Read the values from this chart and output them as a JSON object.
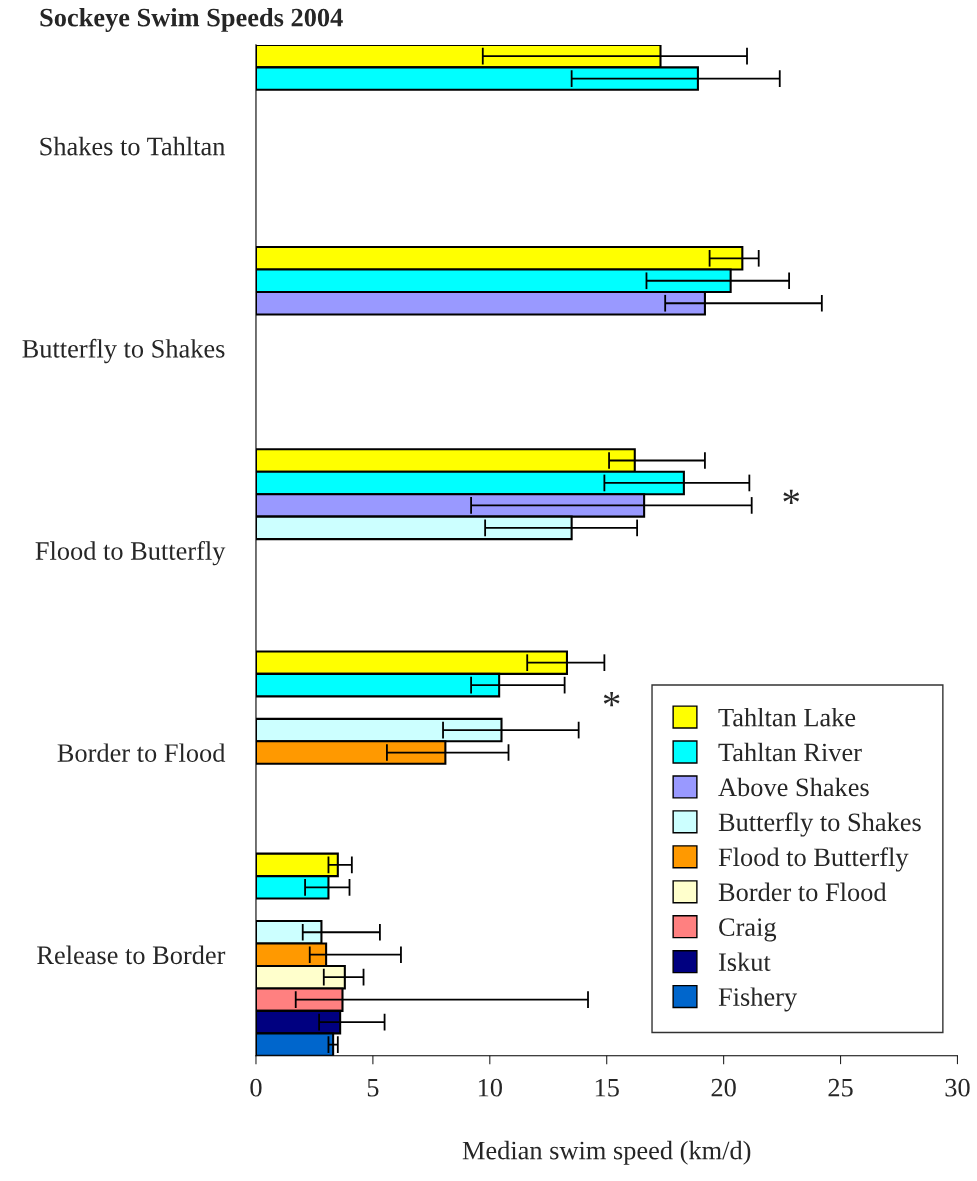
{
  "chart_data": {
    "type": "bar",
    "orientation": "horizontal",
    "title": "Sockeye Swim Speeds 2004",
    "xlabel": "Median swim speed (km/d)",
    "categories": [
      "Shakes to Tahltan",
      "Butterfly to Shakes",
      "Flood to Butterfly",
      "Border to Flood",
      "Release to Border"
    ],
    "series": [
      {
        "name": "Tahltan Lake",
        "color": "#ffff00",
        "values": [
          17.3,
          20.8,
          16.2,
          13.3,
          3.5
        ],
        "errors": [
          [
            9.7,
            21.0
          ],
          [
            19.4,
            21.5
          ],
          [
            15.1,
            19.2
          ],
          [
            11.6,
            14.9
          ],
          [
            3.1,
            4.1
          ]
        ]
      },
      {
        "name": "Tahltan River",
        "color": "#00ffff",
        "values": [
          18.9,
          20.3,
          18.3,
          10.4,
          3.1
        ],
        "errors": [
          [
            13.5,
            22.4
          ],
          [
            16.7,
            22.8
          ],
          [
            14.9,
            21.1
          ],
          [
            9.2,
            13.2
          ],
          [
            2.1,
            4.0
          ]
        ]
      },
      {
        "name": "Above Shakes",
        "color": "#9999ff",
        "values": [
          null,
          19.2,
          16.6,
          null,
          null
        ],
        "errors": [
          null,
          [
            17.5,
            24.2
          ],
          [
            9.2,
            21.2
          ],
          null,
          null
        ]
      },
      {
        "name": "Butterfly to Shakes",
        "color": "#ccffff",
        "values": [
          null,
          null,
          13.5,
          10.5,
          2.8
        ],
        "errors": [
          null,
          null,
          [
            9.8,
            16.3
          ],
          [
            8.0,
            13.8
          ],
          [
            2.0,
            5.3
          ]
        ]
      },
      {
        "name": "Flood to Butterfly",
        "color": "#ff9900",
        "values": [
          null,
          null,
          null,
          8.1,
          3.0
        ],
        "errors": [
          null,
          null,
          null,
          [
            5.6,
            10.8
          ],
          [
            2.3,
            6.2
          ]
        ]
      },
      {
        "name": "Border to Flood",
        "color": "#ffffcc",
        "values": [
          null,
          null,
          null,
          null,
          3.8
        ],
        "errors": [
          null,
          null,
          null,
          null,
          [
            2.9,
            4.6
          ]
        ]
      },
      {
        "name": "Craig",
        "color": "#ff8080",
        "values": [
          null,
          null,
          null,
          null,
          3.7
        ],
        "errors": [
          null,
          null,
          null,
          null,
          [
            1.7,
            14.2
          ]
        ]
      },
      {
        "name": "Iskut",
        "color": "#000080",
        "values": [
          null,
          null,
          null,
          null,
          3.6
        ],
        "errors": [
          null,
          null,
          null,
          null,
          [
            2.7,
            5.5
          ]
        ]
      },
      {
        "name": "Fishery",
        "color": "#0066cc",
        "values": [
          null,
          null,
          null,
          null,
          3.3
        ],
        "errors": [
          null,
          null,
          null,
          null,
          [
            3.1,
            3.5
          ]
        ]
      }
    ],
    "xlim": [
      0,
      30
    ],
    "xticks": [
      0,
      5,
      10,
      15,
      20,
      25,
      30
    ],
    "annotations": [
      "*",
      "*"
    ],
    "legend": "bottom right",
    "grid": false
  }
}
